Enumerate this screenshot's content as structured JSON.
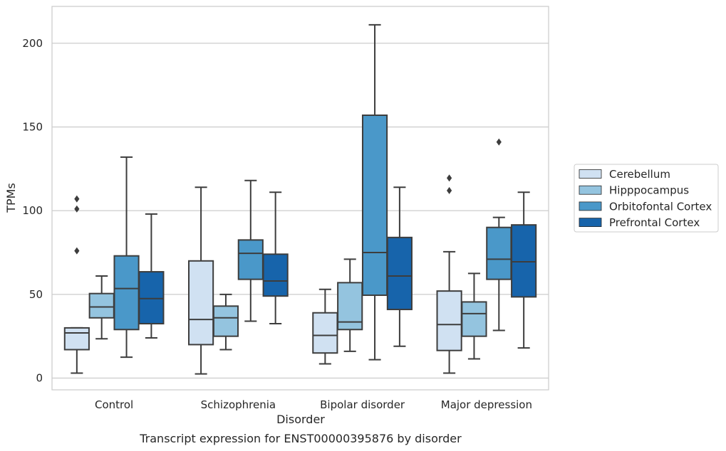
{
  "caption": "Transcript expression for ENST00000395876 by disorder",
  "chart_data": {
    "type": "box",
    "xlabel": "Disorder",
    "ylabel": "TPMs",
    "ylim": [
      -7,
      222
    ],
    "yticks": [
      0,
      50,
      100,
      150,
      200
    ],
    "grid": "horizontal",
    "legend_position": "right",
    "categories": [
      "Control",
      "Schizophrenia",
      "Bipolar disorder",
      "Major depression"
    ],
    "series": [
      {
        "name": "Cerebellum",
        "color": "#d0e1f2",
        "boxes": [
          {
            "whislo": 3,
            "q1": 17,
            "med": 27,
            "q3": 30,
            "whishi": 30,
            "fliers": [
              76,
              101,
              107
            ]
          },
          {
            "whislo": 2.5,
            "q1": 20,
            "med": 35,
            "q3": 70,
            "whishi": 114,
            "fliers": []
          },
          {
            "whislo": 8.5,
            "q1": 15,
            "med": 25.5,
            "q3": 39,
            "whishi": 53,
            "fliers": []
          },
          {
            "whislo": 3,
            "q1": 16.5,
            "med": 32,
            "q3": 52,
            "whishi": 75.5,
            "fliers": [
              112,
              119.5
            ]
          }
        ]
      },
      {
        "name": "Hipppocampus",
        "color": "#94c4df",
        "boxes": [
          {
            "whislo": 23.5,
            "q1": 36,
            "med": 42.5,
            "q3": 50.5,
            "whishi": 61,
            "fliers": []
          },
          {
            "whislo": 17,
            "q1": 25,
            "med": 36,
            "q3": 43,
            "whishi": 50,
            "fliers": []
          },
          {
            "whislo": 16,
            "q1": 29,
            "med": 33.5,
            "q3": 57,
            "whishi": 71,
            "fliers": []
          },
          {
            "whislo": 11.5,
            "q1": 25,
            "med": 38.5,
            "q3": 45.5,
            "whishi": 62.5,
            "fliers": []
          }
        ]
      },
      {
        "name": "Orbitofontal Cortex",
        "color": "#4a98c9",
        "boxes": [
          {
            "whislo": 12.5,
            "q1": 29,
            "med": 53.5,
            "q3": 73,
            "whishi": 132,
            "fliers": []
          },
          {
            "whislo": 34,
            "q1": 59,
            "med": 74.5,
            "q3": 82.5,
            "whishi": 118,
            "fliers": []
          },
          {
            "whislo": 11,
            "q1": 49.5,
            "med": 75,
            "q3": 157,
            "whishi": 211,
            "fliers": []
          },
          {
            "whislo": 28.5,
            "q1": 59,
            "med": 71,
            "q3": 90,
            "whishi": 96,
            "fliers": [
              141
            ]
          }
        ]
      },
      {
        "name": "Prefrontal Cortex",
        "color": "#1764ab",
        "boxes": [
          {
            "whislo": 24,
            "q1": 32.5,
            "med": 47.5,
            "q3": 63.5,
            "whishi": 98,
            "fliers": []
          },
          {
            "whislo": 32.5,
            "q1": 49,
            "med": 58,
            "q3": 74,
            "whishi": 111,
            "fliers": []
          },
          {
            "whislo": 19,
            "q1": 41,
            "med": 61,
            "q3": 84,
            "whishi": 114,
            "fliers": []
          },
          {
            "whislo": 18,
            "q1": 48.5,
            "med": 69.5,
            "q3": 91.5,
            "whishi": 111,
            "fliers": []
          }
        ]
      }
    ]
  }
}
